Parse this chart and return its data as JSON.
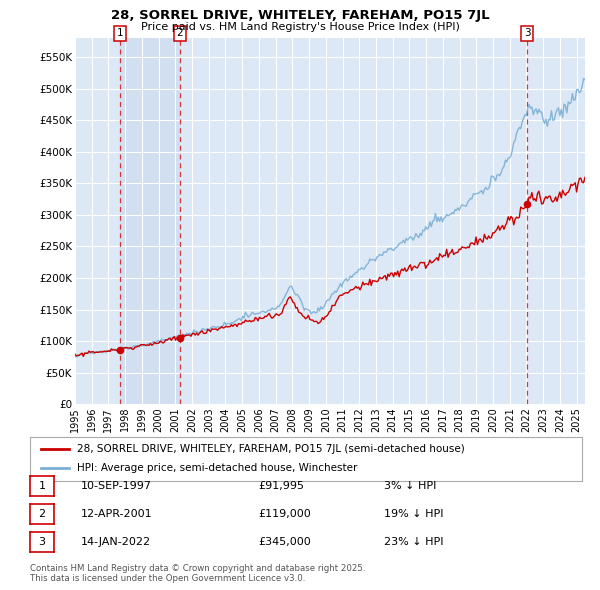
{
  "title_line1": "28, SORREL DRIVE, WHITELEY, FAREHAM, PO15 7JL",
  "title_line2": "Price paid vs. HM Land Registry's House Price Index (HPI)",
  "background_color": "#ffffff",
  "plot_bg_color": "#dce8f5",
  "grid_color": "#ffffff",
  "hpi_color": "#7bafd4",
  "price_color": "#cc0000",
  "ylim_min": 0,
  "ylim_max": 580000,
  "yticks": [
    0,
    50000,
    100000,
    150000,
    200000,
    250000,
    300000,
    350000,
    400000,
    450000,
    500000,
    550000
  ],
  "ytick_labels": [
    "£0",
    "£50K",
    "£100K",
    "£150K",
    "£200K",
    "£250K",
    "£300K",
    "£350K",
    "£400K",
    "£450K",
    "£500K",
    "£550K"
  ],
  "purchases": [
    {
      "num": 1,
      "date_num": 1997.69,
      "price": 91995,
      "label": "10-SEP-1997",
      "amount": "£91,995",
      "pct": "3% ↓ HPI"
    },
    {
      "num": 2,
      "date_num": 2001.28,
      "price": 119000,
      "label": "12-APR-2001",
      "amount": "£119,000",
      "pct": "19% ↓ HPI"
    },
    {
      "num": 3,
      "date_num": 2022.04,
      "price": 345000,
      "label": "14-JAN-2022",
      "amount": "£345,000",
      "pct": "23% ↓ HPI"
    }
  ],
  "legend_label_price": "28, SORREL DRIVE, WHITELEY, FAREHAM, PO15 7JL (semi-detached house)",
  "legend_label_hpi": "HPI: Average price, semi-detached house, Winchester",
  "footer": "Contains HM Land Registry data © Crown copyright and database right 2025.\nThis data is licensed under the Open Government Licence v3.0.",
  "xmin": 1995.0,
  "xmax": 2025.5
}
